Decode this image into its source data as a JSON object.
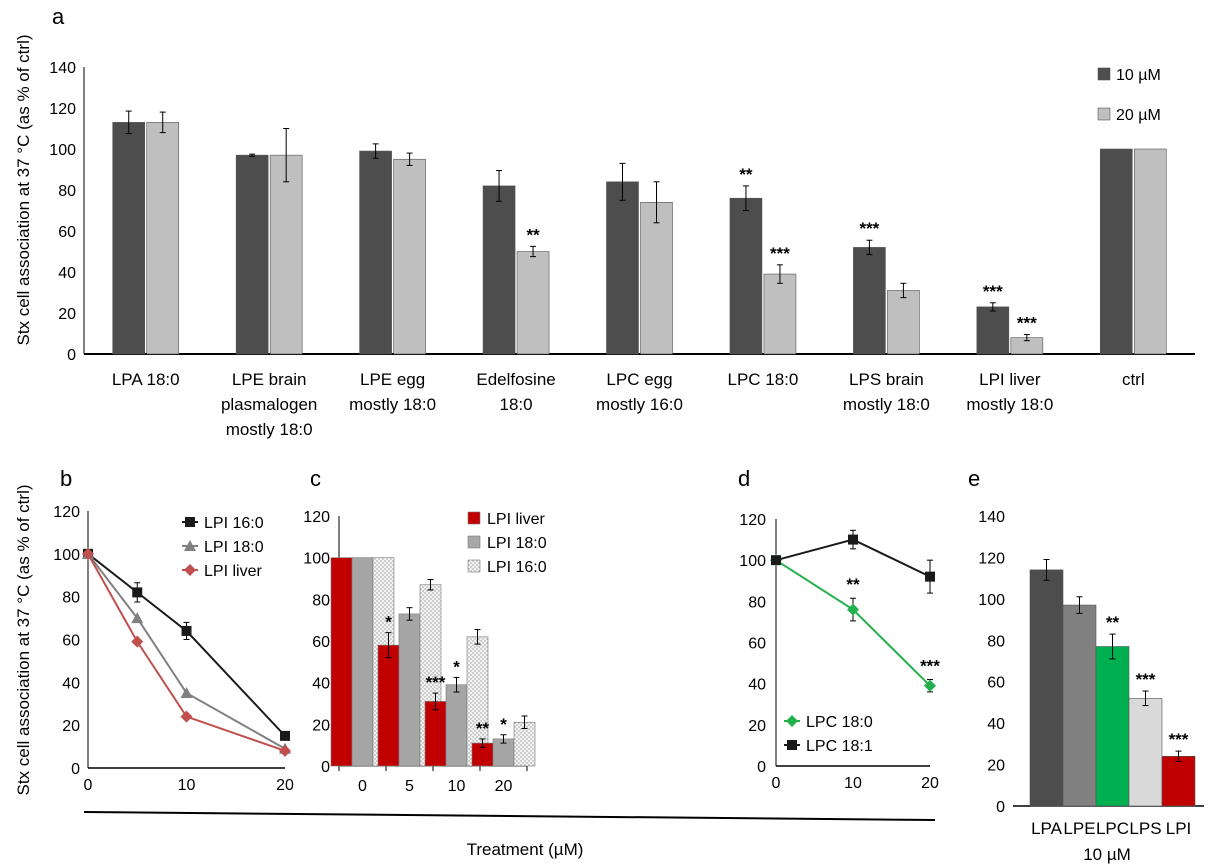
{
  "shared": {
    "ylabel": "Stx cell association at 37 °C (as % of ctrl)",
    "xlabel": "Treatment (µM)"
  },
  "chart_data": [
    {
      "id": "a",
      "panel_label": "a",
      "type": "bar",
      "ylim": [
        0,
        140
      ],
      "yticks": [
        0,
        20,
        40,
        60,
        80,
        100,
        120,
        140
      ],
      "categories": [
        [
          "LPA 18:0"
        ],
        [
          "LPE brain",
          "plasmalogen",
          "mostly 18:0"
        ],
        [
          "LPE egg",
          "mostly 18:0"
        ],
        [
          "Edelfosine",
          "18:0"
        ],
        [
          "LPC egg",
          "mostly 16:0"
        ],
        [
          "LPC 18:0"
        ],
        [
          "LPS brain",
          "mostly 18:0"
        ],
        [
          "LPI liver",
          "mostly 18:0"
        ],
        [
          "ctrl"
        ]
      ],
      "series": [
        {
          "name": "10 µM",
          "color": "#4d4d4d",
          "values": [
            113,
            97,
            99,
            82,
            84,
            76,
            52,
            23,
            100
          ],
          "errors": [
            5.5,
            0.5,
            3.5,
            7.5,
            9,
            6,
            3.5,
            2,
            0
          ],
          "stars": [
            "",
            "",
            "",
            "",
            "",
            "**",
            "***",
            "***",
            ""
          ]
        },
        {
          "name": "20 µM",
          "color": "#bfbfbf",
          "values": [
            113,
            97,
            95,
            50,
            74,
            39,
            31,
            8,
            100
          ],
          "errors": [
            5,
            13,
            3,
            2.5,
            10,
            4.5,
            3.5,
            1.5,
            0
          ],
          "stars": [
            "",
            "",
            "",
            "**",
            "",
            "***",
            "",
            "***",
            ""
          ]
        }
      ]
    },
    {
      "id": "b",
      "panel_label": "b",
      "type": "line",
      "ylim": [
        0,
        120
      ],
      "yticks": [
        0,
        20,
        40,
        60,
        80,
        100,
        120
      ],
      "xlim": [
        0,
        20
      ],
      "xticks": [
        0,
        10,
        20
      ],
      "series": [
        {
          "name": "LPI 16:0",
          "color": "#1a1a1a",
          "marker": "square",
          "x": [
            0,
            5,
            10,
            20
          ],
          "y": [
            100,
            82,
            64,
            15
          ],
          "errors": [
            0,
            4.5,
            4,
            0
          ]
        },
        {
          "name": "LPI 18:0",
          "color": "#808080",
          "marker": "triangle",
          "x": [
            0,
            5,
            10,
            20
          ],
          "y": [
            100,
            70,
            35,
            9
          ],
          "errors": [
            0,
            0,
            0,
            0
          ]
        },
        {
          "name": "LPI liver",
          "color": "#c0504d",
          "marker": "diamond",
          "x": [
            0,
            5,
            10,
            20
          ],
          "y": [
            100,
            59,
            24,
            8
          ],
          "errors": [
            0,
            0,
            0,
            0
          ]
        }
      ]
    },
    {
      "id": "c",
      "panel_label": "c",
      "type": "bar",
      "ylim": [
        0,
        120
      ],
      "yticks": [
        0,
        20,
        40,
        60,
        80,
        100,
        120
      ],
      "categories": [
        [
          "0"
        ],
        [
          "5"
        ],
        [
          "10"
        ],
        [
          "20"
        ]
      ],
      "series": [
        {
          "name": "LPI liver",
          "color": "#c00000",
          "values": [
            100,
            58,
            31,
            11
          ],
          "errors": [
            0,
            6,
            4,
            2
          ],
          "stars": [
            "",
            "*",
            "***",
            "**"
          ]
        },
        {
          "name": "LPI 18:0",
          "color": "#a6a6a6",
          "values": [
            100,
            73,
            39,
            13
          ],
          "errors": [
            0,
            3,
            3.5,
            2
          ],
          "stars": [
            "",
            "",
            "*",
            "*"
          ]
        },
        {
          "name": "LPI 16:0",
          "color": "#e8e8e8",
          "pattern": "dots",
          "values": [
            100,
            87,
            62,
            21
          ],
          "errors": [
            0,
            2.5,
            3.5,
            3
          ],
          "stars": [
            "",
            "",
            "",
            ""
          ]
        }
      ]
    },
    {
      "id": "d",
      "panel_label": "d",
      "type": "line",
      "ylim": [
        0,
        120
      ],
      "yticks": [
        0,
        20,
        40,
        60,
        80,
        100,
        120
      ],
      "xlim": [
        0,
        20
      ],
      "xticks": [
        0,
        10,
        20
      ],
      "series": [
        {
          "name": "LPC 18:0",
          "color": "#22b14c",
          "marker": "diamond",
          "x": [
            0,
            10,
            20
          ],
          "y": [
            100,
            76,
            39
          ],
          "errors": [
            0,
            5.5,
            3
          ],
          "stars": [
            "",
            "**",
            "***"
          ]
        },
        {
          "name": "LPC 18:1",
          "color": "#1a1a1a",
          "marker": "square",
          "x": [
            0,
            10,
            20
          ],
          "y": [
            100,
            110,
            92
          ],
          "errors": [
            0,
            4.5,
            8
          ],
          "stars": [
            "",
            "",
            ""
          ]
        }
      ]
    },
    {
      "id": "e",
      "panel_label": "e",
      "type": "bar",
      "ylim": [
        0,
        140
      ],
      "yticks": [
        0,
        20,
        40,
        60,
        80,
        100,
        120,
        140
      ],
      "categories": [
        [
          "LPA"
        ],
        [
          "LPE"
        ],
        [
          "LPC"
        ],
        [
          "LPS"
        ],
        [
          "LPI"
        ]
      ],
      "subtitle": "10 µM",
      "values": [
        114,
        97,
        77,
        52,
        24
      ],
      "errors": [
        5,
        4,
        6,
        3.5,
        2.5
      ],
      "colors": [
        "#4d4d4d",
        "#808080",
        "#00b050",
        "#d9d9d9",
        "#c00000"
      ],
      "stars": [
        "",
        "",
        "**",
        "***",
        "***"
      ]
    }
  ]
}
